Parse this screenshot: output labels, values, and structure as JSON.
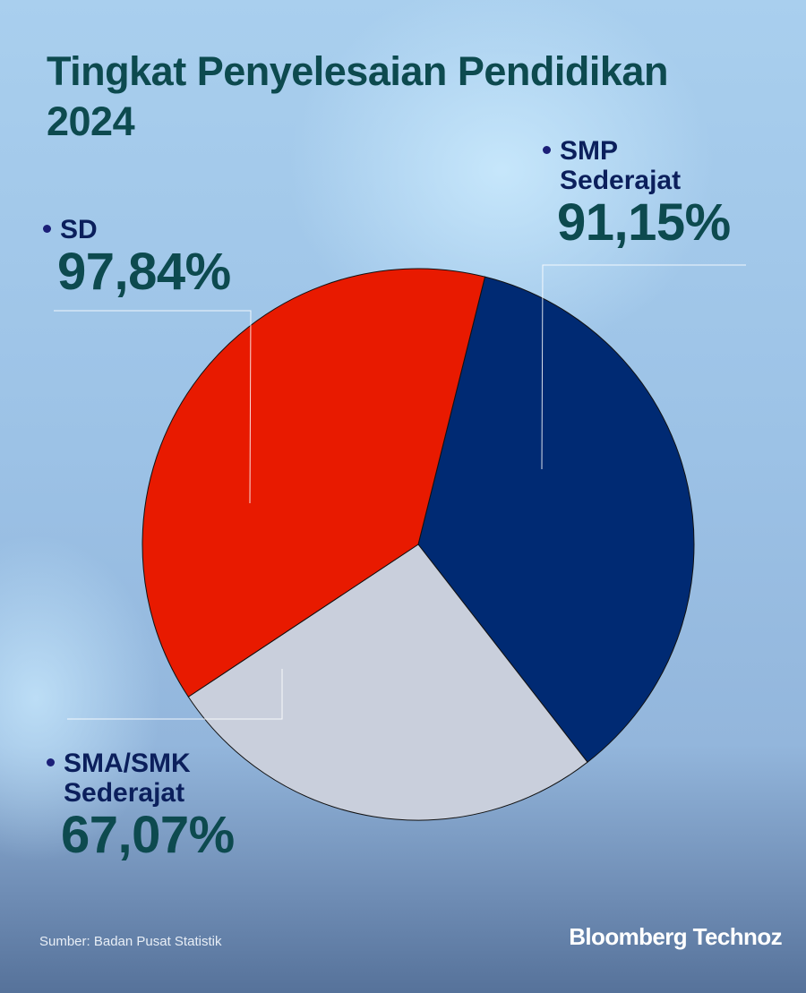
{
  "chart_data": {
    "type": "pie",
    "title": "Tingkat Penyelesaian Pendidikan",
    "subtitle": "2024",
    "categories": [
      "SD",
      "SMP Sederajat",
      "SMA/SMK Sederajat"
    ],
    "values": [
      97.84,
      91.15,
      67.07
    ],
    "value_labels": [
      "97,84%",
      "91,15%",
      "67,07%"
    ],
    "category_lines": [
      [
        "SD"
      ],
      [
        "SMP",
        "Sederajat"
      ],
      [
        "SMA/SMK",
        "Sederajat"
      ]
    ],
    "colors": [
      "#e81a00",
      "#002a73",
      "#c9cfdc"
    ],
    "start_category": "SMP Sederajat",
    "direction": "clockwise",
    "source": "Sumber: Badan Pusat Statistik"
  },
  "brand": {
    "logo_text": "Bloomberg Technoz"
  }
}
